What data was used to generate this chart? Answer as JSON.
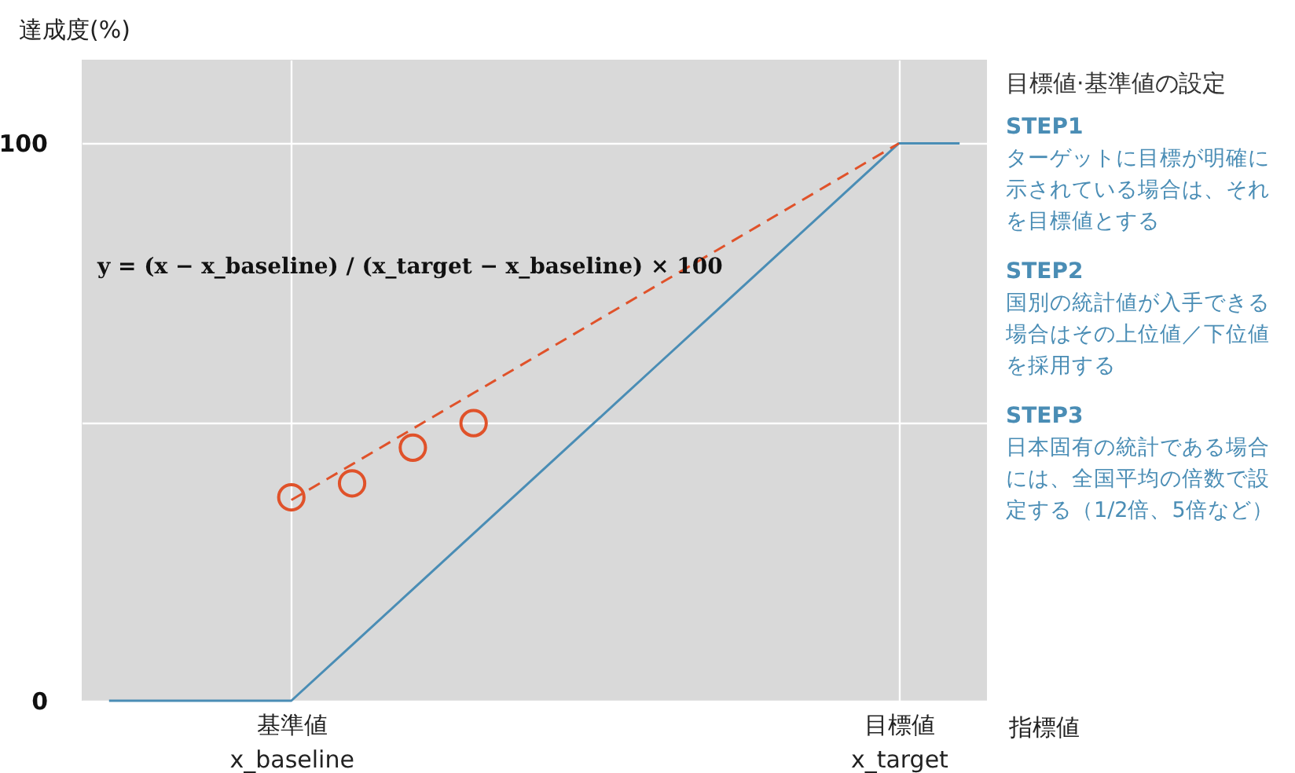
{
  "chart_data": {
    "type": "line",
    "ylabel": "達成度(%)",
    "xlabel": "指標値",
    "categories": [
      null,
      null,
      null,
      "基準値\nx_baseline",
      null,
      null,
      null,
      null,
      null,
      null,
      null,
      null,
      null,
      "目標値\nx_target",
      null
    ],
    "ylim": [
      0,
      115
    ],
    "yticks": [
      0,
      {
        "value": 50,
        "label": null
      },
      100
    ],
    "grid": true,
    "series": [
      {
        "color": "#4a8db5",
        "line_style": "solid",
        "marker": "none",
        "values": [
          0,
          0,
          0,
          0,
          10,
          20,
          30,
          40,
          50,
          60,
          70,
          80,
          90,
          100,
          100
        ]
      },
      {
        "color": "#e0522a",
        "line_style": "dashed",
        "marker": "none",
        "values": [
          null,
          null,
          null,
          36,
          42.4,
          48.8,
          55.2,
          61.6,
          68,
          74.4,
          80.8,
          87.2,
          93.6,
          100,
          null
        ]
      },
      {
        "type": "scatter",
        "color": "#e0522a",
        "marker": "circle",
        "values": [
          null,
          null,
          null,
          36.5,
          39.0,
          45.4,
          49.8,
          null,
          null,
          null,
          null,
          null,
          null,
          null,
          null
        ]
      }
    ],
    "annotations": [
      "y = (x − x_baseline) / (x_target − x_baseline) × 100",
      "目標値·基準値の設定",
      "STEP1",
      "ターゲットに目標が明確に示されている場合は、それを目標値とする",
      "STEP2",
      "国別の統計値が入手できる場合はその上位値／下位値を採用する",
      "STEP3",
      "日本固有の統計である場合には、全国平均の倍数で設定する（1/2倍、5倍など）"
    ]
  }
}
